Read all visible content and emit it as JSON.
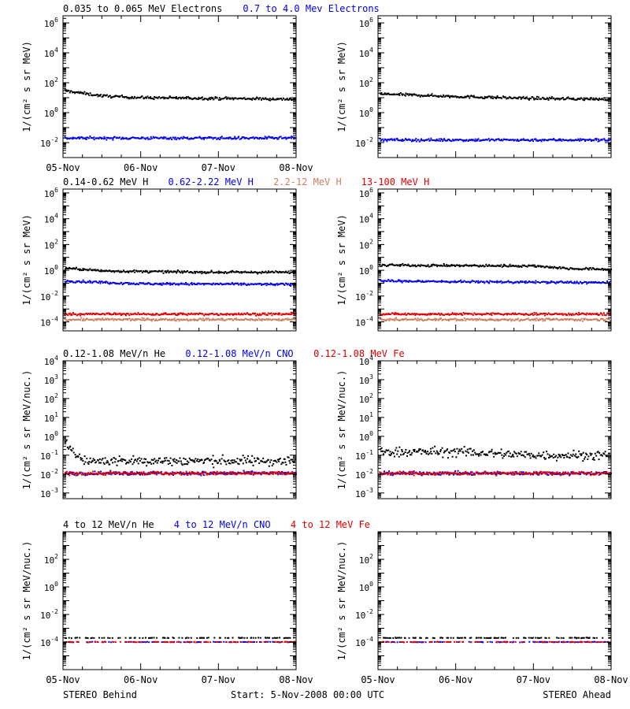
{
  "colors": {
    "black": "#000000",
    "blue": "#0000ee",
    "tan": "#cd8060",
    "red": "#e00000"
  },
  "footer": {
    "left": "STEREO Behind",
    "center": "Start:  5-Nov-2008 00:00 UTC",
    "right": "STEREO Ahead"
  },
  "chart_data": [
    {
      "type": "scatter",
      "row": 1,
      "panel": "STEREO Behind",
      "y_scale": "log",
      "ylim": [
        0.001,
        3000000
      ],
      "ylabel": "1/(cm² s sr MeV)",
      "y_ticks": [
        {
          "base": "10",
          "exp": "-2",
          "value": 0.01
        },
        {
          "base": "10",
          "exp": "0",
          "value": 1
        },
        {
          "base": "10",
          "exp": "2",
          "value": 100
        },
        {
          "base": "10",
          "exp": "4",
          "value": 10000
        },
        {
          "base": "10",
          "exp": "6",
          "value": 1000000
        }
      ],
      "xlim": [
        "2008-11-05",
        "2008-11-08"
      ],
      "x_ticks": [
        "05-Nov",
        "06-Nov",
        "07-Nov",
        "08-Nov"
      ],
      "legend_placement": "above",
      "series": [
        {
          "name": "0.035 to 0.065 MeV Electrons",
          "color": "#000000",
          "x": [
            "2008-11-05",
            "2008-11-05 12:00",
            "2008-11-06",
            "2008-11-07",
            "2008-11-08"
          ],
          "y": [
            30,
            13,
            10,
            9,
            8
          ]
        },
        {
          "name": "0.7 to 4.0 Mev Electrons",
          "color": "#0000ee",
          "x": [
            "2008-11-05",
            "2008-11-08"
          ],
          "y": [
            0.02,
            0.02
          ]
        }
      ]
    },
    {
      "type": "scatter",
      "row": 1,
      "panel": "STEREO Ahead",
      "y_scale": "log",
      "ylim": [
        0.001,
        3000000
      ],
      "ylabel": "1/(cm² s sr MeV)",
      "y_ticks": [
        {
          "base": "10",
          "exp": "-2",
          "value": 0.01
        },
        {
          "base": "10",
          "exp": "0",
          "value": 1
        },
        {
          "base": "10",
          "exp": "2",
          "value": 100
        },
        {
          "base": "10",
          "exp": "4",
          "value": 10000
        },
        {
          "base": "10",
          "exp": "6",
          "value": 1000000
        }
      ],
      "xlim": [
        "2008-11-05",
        "2008-11-08"
      ],
      "x_ticks": [],
      "series": [
        {
          "name": "",
          "color": "#000000",
          "x": [
            "2008-11-05",
            "2008-11-06",
            "2008-11-07",
            "2008-11-08"
          ],
          "y": [
            18,
            12,
            9,
            8
          ]
        },
        {
          "name": "",
          "color": "#0000ee",
          "x": [
            "2008-11-05",
            "2008-11-08"
          ],
          "y": [
            0.015,
            0.015
          ]
        }
      ]
    },
    {
      "type": "scatter",
      "row": 2,
      "panel": "STEREO Behind",
      "y_scale": "log",
      "ylim": [
        2e-05,
        2000000
      ],
      "ylabel": "1/(cm² s sr MeV)",
      "y_ticks": [
        {
          "base": "10",
          "exp": "-4",
          "value": 0.0001
        },
        {
          "base": "10",
          "exp": "-2",
          "value": 0.01
        },
        {
          "base": "10",
          "exp": "0",
          "value": 1
        },
        {
          "base": "10",
          "exp": "2",
          "value": 100
        },
        {
          "base": "10",
          "exp": "4",
          "value": 10000
        },
        {
          "base": "10",
          "exp": "6",
          "value": 1000000
        }
      ],
      "xlim": [
        "2008-11-05",
        "2008-11-08"
      ],
      "x_ticks": [],
      "legend_placement": "above",
      "series": [
        {
          "name": "0.14-0.62 MeV H",
          "color": "#000000",
          "x": [
            "2008-11-05",
            "2008-11-05 12:00",
            "2008-11-06",
            "2008-11-07",
            "2008-11-08"
          ],
          "y": [
            1.5,
            0.9,
            0.8,
            0.7,
            0.7
          ]
        },
        {
          "name": "0.62-2.22 MeV H",
          "color": "#0000ee",
          "x": [
            "2008-11-05",
            "2008-11-06",
            "2008-11-08"
          ],
          "y": [
            0.15,
            0.09,
            0.08
          ]
        },
        {
          "name": "2.2-12 MeV H",
          "color": "#cd8060",
          "x": [
            "2008-11-05",
            "2008-11-08"
          ],
          "y": [
            0.00015,
            0.00015
          ]
        },
        {
          "name": "13-100 MeV H",
          "color": "#e00000",
          "x": [
            "2008-11-05",
            "2008-11-08"
          ],
          "y": [
            0.0004,
            0.0004
          ]
        }
      ]
    },
    {
      "type": "scatter",
      "row": 2,
      "panel": "STEREO Ahead",
      "y_scale": "log",
      "ylim": [
        2e-05,
        2000000
      ],
      "ylabel": "1/(cm² s sr MeV)",
      "y_ticks": [
        {
          "base": "10",
          "exp": "-4",
          "value": 0.0001
        },
        {
          "base": "10",
          "exp": "-2",
          "value": 0.01
        },
        {
          "base": "10",
          "exp": "0",
          "value": 1
        },
        {
          "base": "10",
          "exp": "2",
          "value": 100
        },
        {
          "base": "10",
          "exp": "4",
          "value": 10000
        },
        {
          "base": "10",
          "exp": "6",
          "value": 1000000
        }
      ],
      "xlim": [
        "2008-11-05",
        "2008-11-08"
      ],
      "x_ticks": [],
      "series": [
        {
          "name": "",
          "color": "#000000",
          "x": [
            "2008-11-05",
            "2008-11-06",
            "2008-11-07",
            "2008-11-07 12:00",
            "2008-11-08"
          ],
          "y": [
            2.5,
            2.3,
            2.2,
            1.3,
            1.2
          ]
        },
        {
          "name": "",
          "color": "#0000ee",
          "x": [
            "2008-11-05",
            "2008-11-06",
            "2008-11-08"
          ],
          "y": [
            0.15,
            0.13,
            0.11
          ]
        },
        {
          "name": "",
          "color": "#cd8060",
          "x": [
            "2008-11-05",
            "2008-11-08"
          ],
          "y": [
            0.00015,
            0.00015
          ]
        },
        {
          "name": "",
          "color": "#e00000",
          "x": [
            "2008-11-05",
            "2008-11-08"
          ],
          "y": [
            0.0004,
            0.0004
          ]
        }
      ]
    },
    {
      "type": "scatter",
      "row": 3,
      "panel": "STEREO Behind",
      "y_scale": "log",
      "ylim": [
        0.0005,
        10000
      ],
      "ylabel": "1/(cm² s sr MeV/nuc.)",
      "y_ticks": [
        {
          "base": "10",
          "exp": "-3",
          "value": 0.001
        },
        {
          "base": "10",
          "exp": "-2",
          "value": 0.01
        },
        {
          "base": "10",
          "exp": "-1",
          "value": 0.1
        },
        {
          "base": "10",
          "exp": "0",
          "value": 1
        },
        {
          "base": "10",
          "exp": "1",
          "value": 10
        },
        {
          "base": "10",
          "exp": "2",
          "value": 100
        },
        {
          "base": "10",
          "exp": "3",
          "value": 1000
        },
        {
          "base": "10",
          "exp": "4",
          "value": 10000
        }
      ],
      "xlim": [
        "2008-11-05",
        "2008-11-08"
      ],
      "x_ticks": [],
      "legend_placement": "above",
      "series": [
        {
          "name": "0.12-1.08 MeV/n He",
          "color": "#000000",
          "x": [
            "2008-11-05",
            "2008-11-05 03:00",
            "2008-11-05 06:00",
            "2008-11-08"
          ],
          "y": [
            0.4,
            0.2,
            0.05,
            0.05
          ]
        },
        {
          "name": "0.12-1.08 MeV/n CNO",
          "color": "#0000ee",
          "x": [
            "2008-11-05",
            "2008-11-08"
          ],
          "y": [
            0.011,
            0.011
          ]
        },
        {
          "name": "0.12-1.08 MeV Fe",
          "color": "#e00000",
          "x": [
            "2008-11-05",
            "2008-11-08"
          ],
          "y": [
            0.011,
            0.011
          ]
        }
      ]
    },
    {
      "type": "scatter",
      "row": 3,
      "panel": "STEREO Ahead",
      "y_scale": "log",
      "ylim": [
        0.0005,
        10000
      ],
      "ylabel": "1/(cm² s sr MeV/nuc.)",
      "y_ticks": [
        {
          "base": "10",
          "exp": "-3",
          "value": 0.001
        },
        {
          "base": "10",
          "exp": "-2",
          "value": 0.01
        },
        {
          "base": "10",
          "exp": "-1",
          "value": 0.1
        },
        {
          "base": "10",
          "exp": "0",
          "value": 1
        },
        {
          "base": "10",
          "exp": "1",
          "value": 10
        },
        {
          "base": "10",
          "exp": "2",
          "value": 100
        },
        {
          "base": "10",
          "exp": "3",
          "value": 1000
        },
        {
          "base": "10",
          "exp": "4",
          "value": 10000
        }
      ],
      "xlim": [
        "2008-11-05",
        "2008-11-08"
      ],
      "x_ticks": [],
      "series": [
        {
          "name": "",
          "color": "#000000",
          "x": [
            "2008-11-05",
            "2008-11-06",
            "2008-11-07",
            "2008-11-08"
          ],
          "y": [
            0.15,
            0.15,
            0.1,
            0.1
          ]
        },
        {
          "name": "",
          "color": "#0000ee",
          "x": [
            "2008-11-05",
            "2008-11-08"
          ],
          "y": [
            0.011,
            0.011
          ]
        },
        {
          "name": "",
          "color": "#e00000",
          "x": [
            "2008-11-05",
            "2008-11-08"
          ],
          "y": [
            0.011,
            0.011
          ]
        }
      ]
    },
    {
      "type": "scatter",
      "row": 4,
      "panel": "STEREO Behind",
      "y_scale": "log",
      "ylim": [
        1e-06,
        10000
      ],
      "ylabel": "1/(cm² s sr MeV/nuc.)",
      "y_ticks": [
        {
          "base": "10",
          "exp": "-4",
          "value": 0.0001
        },
        {
          "base": "10",
          "exp": "-2",
          "value": 0.01
        },
        {
          "base": "10",
          "exp": "0",
          "value": 1
        },
        {
          "base": "10",
          "exp": "2",
          "value": 100
        }
      ],
      "xlim": [
        "2008-11-05",
        "2008-11-08"
      ],
      "x_ticks": [
        "05-Nov",
        "06-Nov",
        "07-Nov",
        "08-Nov"
      ],
      "legend_placement": "above",
      "series": [
        {
          "name": "4 to 12 MeV/n He",
          "color": "#000000",
          "x": [
            "2008-11-05",
            "2008-11-08"
          ],
          "y": [
            0.0002,
            0.0002
          ]
        },
        {
          "name": "4 to 12 MeV/n CNO",
          "color": "#0000ee",
          "x": [
            "2008-11-05",
            "2008-11-08"
          ],
          "y": [
            0.0001,
            0.0001
          ]
        },
        {
          "name": "4 to 12 MeV Fe",
          "color": "#e00000",
          "x": [
            "2008-11-05",
            "2008-11-08"
          ],
          "y": [
            0.0001,
            0.0001
          ]
        }
      ]
    },
    {
      "type": "scatter",
      "row": 4,
      "panel": "STEREO Ahead",
      "y_scale": "log",
      "ylim": [
        1e-06,
        10000
      ],
      "ylabel": "1/(cm² s sr MeV/nuc.)",
      "y_ticks": [
        {
          "base": "10",
          "exp": "-4",
          "value": 0.0001
        },
        {
          "base": "10",
          "exp": "-2",
          "value": 0.01
        },
        {
          "base": "10",
          "exp": "0",
          "value": 1
        },
        {
          "base": "10",
          "exp": "2",
          "value": 100
        }
      ],
      "xlim": [
        "2008-11-05",
        "2008-11-08"
      ],
      "x_ticks": [
        "05-Nov",
        "06-Nov",
        "07-Nov",
        "08-Nov"
      ],
      "series": [
        {
          "name": "",
          "color": "#000000",
          "x": [
            "2008-11-05",
            "2008-11-08"
          ],
          "y": [
            0.0002,
            0.0002
          ]
        },
        {
          "name": "",
          "color": "#0000ee",
          "x": [
            "2008-11-05",
            "2008-11-08"
          ],
          "y": [
            0.0001,
            0.0001
          ]
        },
        {
          "name": "",
          "color": "#e00000",
          "x": [
            "2008-11-05",
            "2008-11-08"
          ],
          "y": [
            0.0001,
            0.0001
          ]
        }
      ]
    }
  ]
}
